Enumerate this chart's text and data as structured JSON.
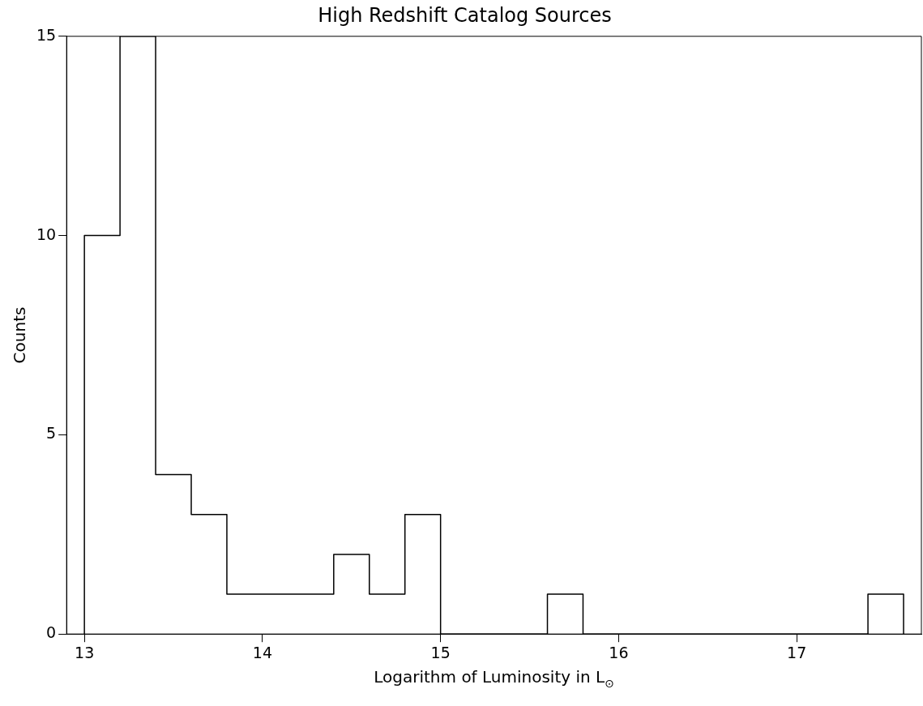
{
  "chart_data": {
    "type": "histogram",
    "title": "High Redshift Catalog Sources",
    "xlabel": "Logarithm of Luminosity in L$_{⊙}$",
    "ylabel": "Counts",
    "bins": [
      13.0,
      13.2,
      13.4,
      13.6,
      13.8,
      14.0,
      14.2,
      14.4,
      14.6,
      14.8,
      15.0,
      15.2,
      15.4,
      15.6,
      15.8,
      16.0,
      16.2,
      16.4,
      16.6,
      16.8,
      17.0,
      17.2,
      17.4,
      17.6
    ],
    "values": [
      10,
      15,
      4,
      3,
      1,
      1,
      1,
      2,
      1,
      3,
      0,
      0,
      0,
      1,
      0,
      0,
      0,
      0,
      0,
      0,
      0,
      0,
      1
    ],
    "color": "#000000",
    "xlim": [
      12.9,
      17.7
    ],
    "xticks": [
      13,
      14,
      15,
      16,
      17
    ],
    "ylim": [
      0,
      15
    ],
    "yticks": [
      0,
      5,
      10,
      15
    ],
    "grid": false,
    "legend": false
  }
}
